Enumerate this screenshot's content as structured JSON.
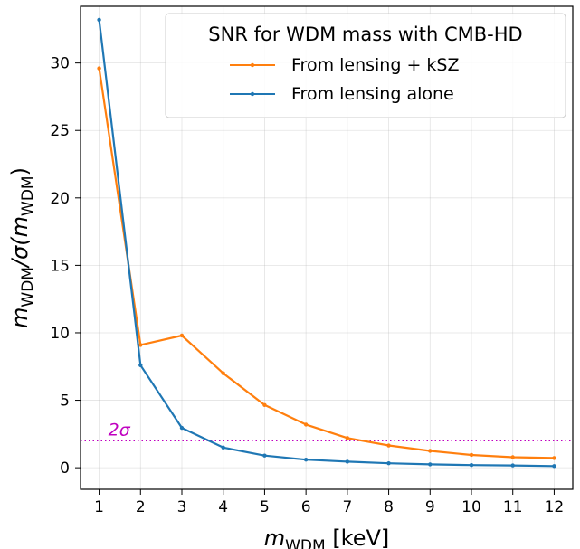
{
  "chart_data": {
    "type": "line",
    "x": [
      1,
      2,
      3,
      4,
      5,
      6,
      7,
      8,
      9,
      10,
      11,
      12
    ],
    "xlim": [
      0.55,
      12.45
    ],
    "ylim": [
      -1.6,
      34.2
    ],
    "xticks": [
      "1",
      "2",
      "3",
      "4",
      "5",
      "6",
      "7",
      "8",
      "9",
      "10",
      "11",
      "12"
    ],
    "yticks": [
      "0",
      "5",
      "10",
      "15",
      "20",
      "25",
      "30"
    ],
    "xlabel_main": "m",
    "xlabel_sub": "WDM",
    "xlabel_unit": " [keV]",
    "ylabel_parts": {
      "m": "m",
      "sub": "WDM",
      "slash_sigma": "/σ(",
      "close": ")"
    },
    "grid": true,
    "legend": {
      "position": "top-right",
      "title": "SNR for WDM mass with CMB-HD"
    },
    "series": [
      {
        "name": "From lensing + kSZ",
        "color": "#ff7f0e",
        "values": [
          29.6,
          9.1,
          9.8,
          7.0,
          4.65,
          3.2,
          2.2,
          1.65,
          1.25,
          0.95,
          0.78,
          0.72
        ]
      },
      {
        "name": "From lensing alone",
        "color": "#1f77b4",
        "values": [
          33.2,
          7.6,
          2.95,
          1.5,
          0.9,
          0.6,
          0.45,
          0.33,
          0.25,
          0.2,
          0.17,
          0.12
        ]
      }
    ],
    "hline": {
      "y": 2,
      "color": "#c000c0",
      "style": "dotted",
      "label": "2σ"
    }
  }
}
